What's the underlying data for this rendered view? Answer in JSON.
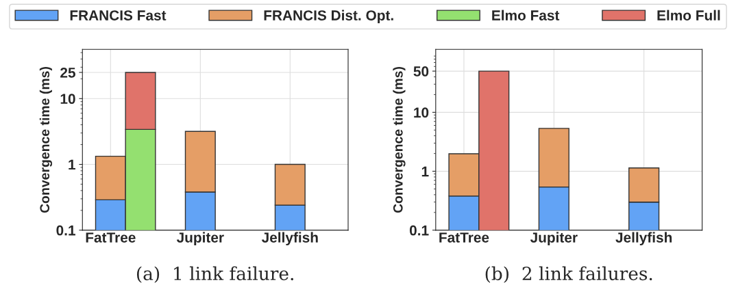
{
  "chart_data": [
    {
      "type": "bar",
      "stacked": true,
      "ylabel": "Convergence time (ms)",
      "categories": [
        "FatTree",
        null,
        null,
        "Jupiter",
        null,
        null,
        "Jellyfish",
        null,
        null
      ],
      "log": true,
      "ylim": [
        0.1,
        56
      ],
      "yticks": [
        0.1,
        1,
        10,
        25
      ],
      "grid": true,
      "legend": "top",
      "annotations": [
        "(a)  1 link failure."
      ],
      "series": [
        {
          "name": "FRANCIS Fast",
          "color": "#62a3f5",
          "values": [
            0.29,
            null,
            null,
            0.38,
            null,
            null,
            0.24,
            null,
            null
          ]
        },
        {
          "name": "FRANCIS Dist. Opt.",
          "color": "#e59e66",
          "values": [
            1.04,
            null,
            null,
            2.8,
            null,
            null,
            0.76,
            null,
            null
          ]
        },
        {
          "name": "Elmo Fast",
          "color": "#94e070",
          "values": [
            null,
            3.4,
            null,
            null,
            null,
            null,
            null,
            null,
            null
          ]
        },
        {
          "name": "Elmo Full",
          "color": "#e0736a",
          "values": [
            null,
            21.6,
            null,
            null,
            null,
            null,
            null,
            null,
            null
          ]
        }
      ]
    },
    {
      "type": "bar",
      "stacked": true,
      "ylabel": "Convergence time (ms)",
      "categories": [
        "FatTree",
        null,
        null,
        "Jupiter",
        null,
        null,
        "Jellyfish",
        null,
        null
      ],
      "log": true,
      "ylim": [
        0.1,
        117
      ],
      "yticks": [
        0.1,
        1,
        10,
        50
      ],
      "grid": true,
      "legend": "top",
      "annotations": [
        "(b)  2 link failures."
      ],
      "series": [
        {
          "name": "FRANCIS Fast",
          "color": "#62a3f5",
          "values": [
            0.38,
            null,
            null,
            0.54,
            null,
            null,
            0.3,
            null,
            null
          ]
        },
        {
          "name": "FRANCIS Dist. Opt.",
          "color": "#e59e66",
          "values": [
            1.6,
            null,
            null,
            4.8,
            null,
            null,
            0.84,
            null,
            null
          ]
        },
        {
          "name": "Elmo Full",
          "color": "#e0736a",
          "values": [
            null,
            50,
            null,
            null,
            null,
            null,
            null,
            null,
            null
          ]
        }
      ]
    }
  ]
}
